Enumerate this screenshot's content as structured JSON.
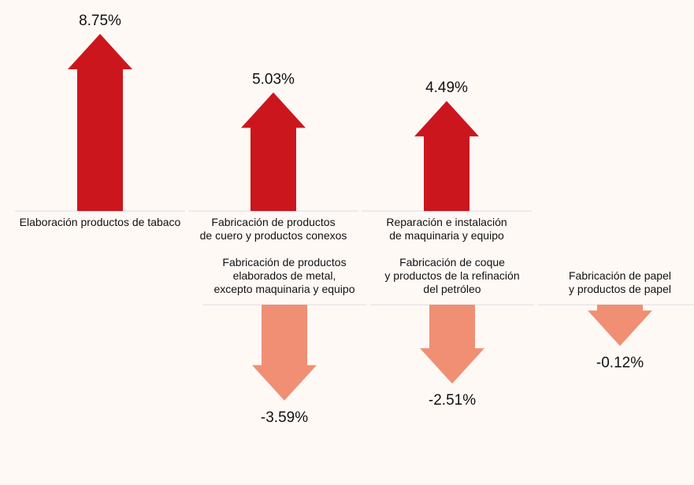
{
  "chart_data": {
    "type": "arrow",
    "categories": [
      "Elaboración productos de tabaco",
      "Fabricación de productos\nde cuero y productos conexos",
      "Reparación e instalación\nde maquinaria y equipo",
      "Fabricación de productos\nelaborados de metal,\nexcepto maquinaria y equipo",
      "Fabricación de coque\ny productos de la refinación\ndel petróleo",
      "Fabricación de papel\ny productos de papel"
    ],
    "values": [
      8.75,
      5.03,
      4.49,
      -3.59,
      -2.51,
      -0.12
    ],
    "value_labels": [
      "8.75%",
      "5.03%",
      "4.49%",
      "-3.59%",
      "-2.51%",
      "-0.12%"
    ],
    "colors": {
      "increase": "#cc161d",
      "decrease": "#f08f74"
    }
  }
}
